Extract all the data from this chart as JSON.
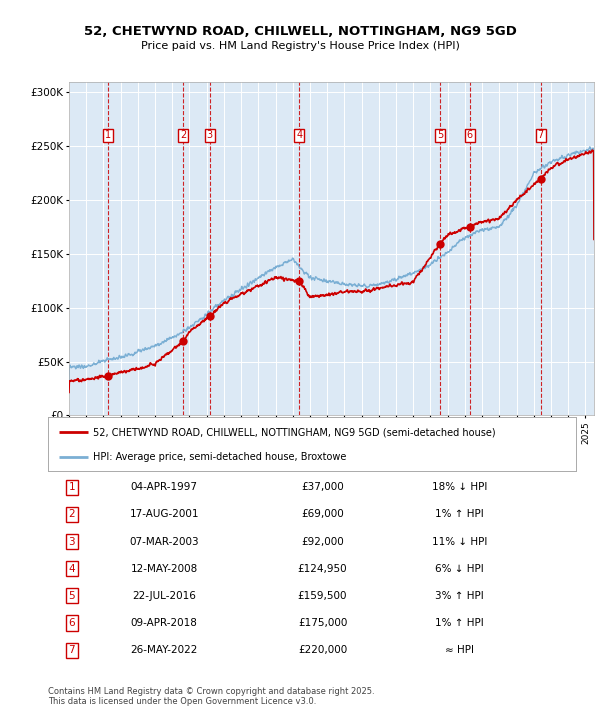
{
  "title": "52, CHETWYND ROAD, CHILWELL, NOTTINGHAM, NG9 5GD",
  "subtitle": "Price paid vs. HM Land Registry's House Price Index (HPI)",
  "bg_color": "#dce9f5",
  "hpi_line_color": "#7bafd4",
  "price_line_color": "#cc0000",
  "marker_color": "#cc0000",
  "dashed_line_color": "#cc0000",
  "ylim": [
    0,
    310000
  ],
  "yticks": [
    0,
    50000,
    100000,
    150000,
    200000,
    250000,
    300000
  ],
  "ytick_labels": [
    "£0",
    "£50K",
    "£100K",
    "£150K",
    "£200K",
    "£250K",
    "£300K"
  ],
  "sale_dates_num": [
    1997.26,
    2001.63,
    2003.18,
    2008.37,
    2016.55,
    2018.27,
    2022.4
  ],
  "sale_prices": [
    37000,
    69000,
    92000,
    124950,
    159500,
    175000,
    220000
  ],
  "sale_labels": [
    "1",
    "2",
    "3",
    "4",
    "5",
    "6",
    "7"
  ],
  "sale_info": [
    {
      "num": "1",
      "date": "04-APR-1997",
      "price": "£37,000",
      "hpi": "18% ↓ HPI"
    },
    {
      "num": "2",
      "date": "17-AUG-2001",
      "price": "£69,000",
      "hpi": "1% ↑ HPI"
    },
    {
      "num": "3",
      "date": "07-MAR-2003",
      "price": "£92,000",
      "hpi": "11% ↓ HPI"
    },
    {
      "num": "4",
      "date": "12-MAY-2008",
      "price": "£124,950",
      "hpi": "6% ↓ HPI"
    },
    {
      "num": "5",
      "date": "22-JUL-2016",
      "price": "£159,500",
      "hpi": "3% ↑ HPI"
    },
    {
      "num": "6",
      "date": "09-APR-2018",
      "price": "£175,000",
      "hpi": "1% ↑ HPI"
    },
    {
      "num": "7",
      "date": "26-MAY-2022",
      "price": "£220,000",
      "hpi": "≈ HPI"
    }
  ],
  "legend_label_red": "52, CHETWYND ROAD, CHILWELL, NOTTINGHAM, NG9 5GD (semi-detached house)",
  "legend_label_blue": "HPI: Average price, semi-detached house, Broxtowe",
  "footer": "Contains HM Land Registry data © Crown copyright and database right 2025.\nThis data is licensed under the Open Government Licence v3.0.",
  "xmin": 1995.0,
  "xmax": 2025.5
}
